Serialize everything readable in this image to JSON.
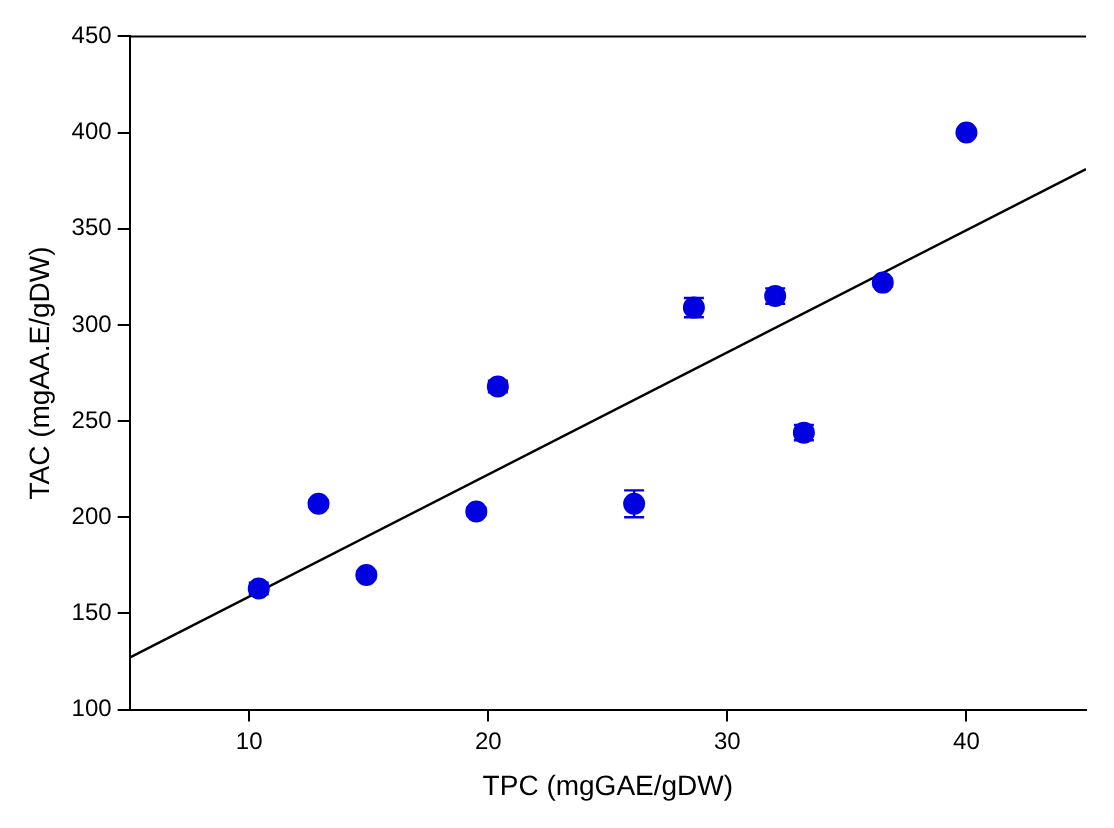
{
  "chart_data": {
    "type": "scatter",
    "xlabel": "TPC (mgGAE/gDW)",
    "ylabel": "TAC (mgAA.E/gDW)",
    "xlim": [
      5,
      45
    ],
    "xticks": [
      10,
      20,
      30,
      40
    ],
    "ylim": [
      100,
      450
    ],
    "yticks": [
      100,
      150,
      200,
      250,
      300,
      350,
      400,
      450
    ],
    "grid": false,
    "legend": false,
    "marker": "circle",
    "series": [
      {
        "type": "scatter",
        "color": "#0000e0",
        "x": [
          10.4,
          12.9,
          14.9,
          19.5,
          20.4,
          26.1,
          28.6,
          32.0,
          33.2,
          36.5,
          40.0
        ],
        "values": [
          163,
          207,
          170,
          203,
          268,
          207,
          309,
          315,
          244,
          322,
          400
        ],
        "errors": [
          3,
          2,
          2,
          2,
          3,
          7,
          5,
          4,
          4,
          2,
          1
        ]
      },
      {
        "type": "line",
        "color": "#000000",
        "x": [
          5,
          45
        ],
        "values": [
          127,
          381
        ],
        "marker": "none",
        "line_style": "solid"
      }
    ]
  }
}
